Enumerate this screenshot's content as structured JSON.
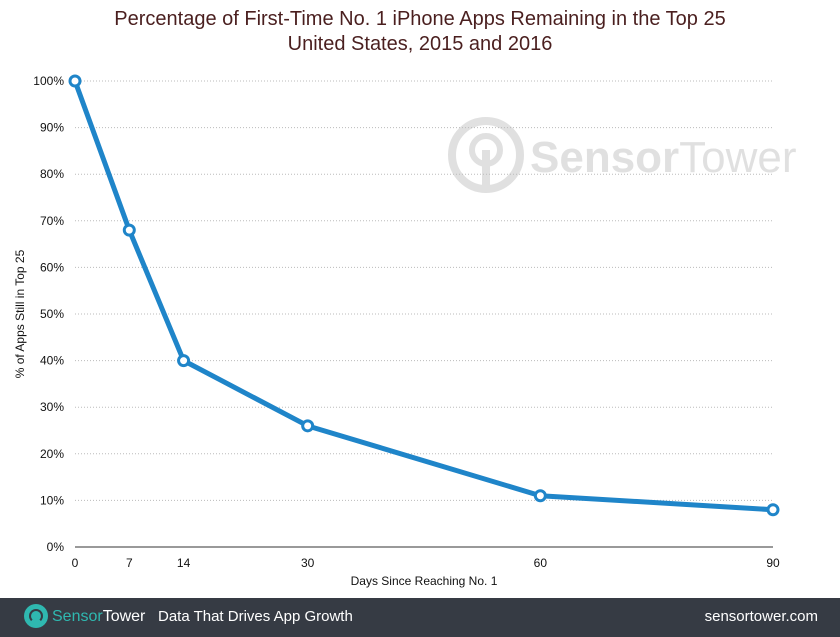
{
  "chart_data": {
    "type": "line",
    "title": "Percentage of First-Time No. 1 iPhone Apps Remaining in the Top 25",
    "subtitle": "United States, 2015 and 2016",
    "xlabel": "Days Since Reaching No. 1",
    "ylabel": "% of Apps Still in Top 25",
    "x": [
      0,
      7,
      14,
      30,
      60,
      90
    ],
    "x_tick_labels": [
      "0",
      "7",
      "14",
      "30",
      "60",
      "90"
    ],
    "values": [
      100,
      68,
      40,
      26,
      11,
      8
    ],
    "ylim": [
      0,
      100
    ],
    "xlim": [
      0,
      90
    ],
    "y_ticks": [
      0,
      10,
      20,
      30,
      40,
      50,
      60,
      70,
      80,
      90,
      100
    ],
    "y_tick_labels": [
      "0%",
      "10%",
      "20%",
      "30%",
      "40%",
      "50%",
      "60%",
      "70%",
      "80%",
      "90%",
      "100%"
    ],
    "grid": "horizontal dotted",
    "line_color": "#1f85c9"
  },
  "watermark": {
    "text_a": "Sensor",
    "text_b": "Tower"
  },
  "footer": {
    "brand_a": "Sensor",
    "brand_b": "Tower",
    "tagline": "Data That Drives App Growth",
    "url": "sensortower.com",
    "brand_color": "#2fb8b0",
    "background": "#363b44"
  }
}
